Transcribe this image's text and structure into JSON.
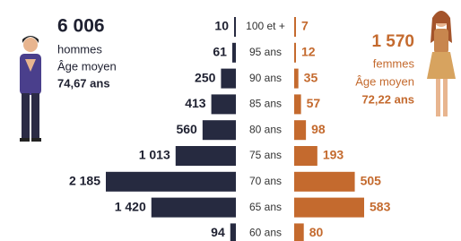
{
  "chart_data": {
    "type": "pyramid",
    "categories": [
      "100 et +",
      "95 ans",
      "90 ans",
      "85 ans",
      "80 ans",
      "75 ans",
      "70 ans",
      "65 ans",
      "60 ans"
    ],
    "series": [
      {
        "name": "hommes",
        "color": "#262a40",
        "values": [
          10,
          61,
          250,
          413,
          560,
          1013,
          2185,
          1420,
          94
        ],
        "value_labels": [
          "10",
          "61",
          "250",
          "413",
          "560",
          "1 013",
          "2 185",
          "1 420",
          "94"
        ]
      },
      {
        "name": "femmes",
        "color": "#c46a2e",
        "values": [
          7,
          12,
          35,
          57,
          98,
          193,
          505,
          583,
          80
        ]
      }
    ],
    "annotations": {
      "men": {
        "total": "6 006",
        "label": "hommes",
        "age_title": "Âge moyen",
        "age": "74,67 ans"
      },
      "women": {
        "total": "1 570",
        "label": "femmes",
        "age_title": "Âge moyen",
        "age": "72,22 ans"
      }
    }
  }
}
